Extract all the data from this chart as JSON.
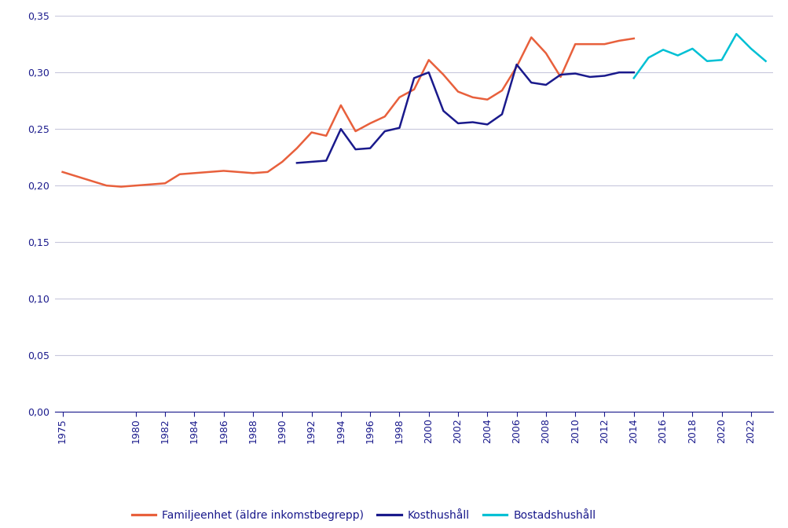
{
  "background_color": "#ffffff",
  "grid_color": "#c8c8dc",
  "series": {
    "familjeenhet": {
      "label": "Familjeenhet (äldre inkomstbegrepp)",
      "color": "#e8603c",
      "years": [
        1975,
        1976,
        1977,
        1978,
        1979,
        1980,
        1981,
        1982,
        1983,
        1984,
        1985,
        1986,
        1987,
        1988,
        1989,
        1990,
        1991,
        1992,
        1993,
        1994,
        1995,
        1996,
        1997,
        1998,
        1999,
        2000,
        2001,
        2002,
        2003,
        2004,
        2005,
        2006,
        2007,
        2008,
        2009,
        2010,
        2011,
        2012,
        2013,
        2014
      ],
      "values": [
        0.212,
        0.208,
        0.204,
        0.2,
        0.199,
        0.2,
        0.201,
        0.202,
        0.21,
        0.211,
        0.212,
        0.213,
        0.212,
        0.211,
        0.212,
        0.221,
        0.233,
        0.247,
        0.244,
        0.271,
        0.248,
        0.255,
        0.261,
        0.278,
        0.285,
        0.311,
        0.298,
        0.283,
        0.278,
        0.276,
        0.284,
        0.305,
        0.331,
        0.317,
        0.296,
        0.325,
        0.325,
        0.325,
        0.328,
        0.33
      ]
    },
    "kosthushall": {
      "label": "Kosthushåll",
      "color": "#1a1a8c",
      "years": [
        1991,
        1992,
        1993,
        1994,
        1995,
        1996,
        1997,
        1998,
        1999,
        2000,
        2001,
        2002,
        2003,
        2004,
        2005,
        2006,
        2007,
        2008,
        2009,
        2010,
        2011,
        2012,
        2013,
        2014
      ],
      "values": [
        0.22,
        0.221,
        0.222,
        0.25,
        0.232,
        0.233,
        0.248,
        0.251,
        0.295,
        0.3,
        0.266,
        0.255,
        0.256,
        0.254,
        0.263,
        0.307,
        0.291,
        0.289,
        0.298,
        0.299,
        0.296,
        0.297,
        0.3,
        0.3
      ]
    },
    "bostadshushall": {
      "label": "Bostadshushåll",
      "color": "#00c0d4",
      "years": [
        2014,
        2015,
        2016,
        2017,
        2018,
        2019,
        2020,
        2021,
        2022,
        2023
      ],
      "values": [
        0.295,
        0.313,
        0.32,
        0.315,
        0.321,
        0.31,
        0.311,
        0.334,
        0.321,
        0.31
      ]
    }
  },
  "ylim": [
    0.0,
    0.35
  ],
  "yticks": [
    0.0,
    0.05,
    0.1,
    0.15,
    0.2,
    0.25,
    0.3,
    0.35
  ],
  "xlim": [
    1974.5,
    2023.5
  ],
  "xtick_labels": [
    "1975",
    "1980",
    "1982",
    "1984",
    "1986",
    "1988",
    "1990",
    "1992",
    "1994",
    "1996",
    "1998",
    "2000",
    "2002",
    "2004",
    "2006",
    "2008",
    "2010",
    "2012",
    "2014",
    "2016",
    "2018",
    "2020",
    "2022"
  ],
  "xtick_positions": [
    1975,
    1980,
    1982,
    1984,
    1986,
    1988,
    1990,
    1992,
    1994,
    1996,
    1998,
    2000,
    2002,
    2004,
    2006,
    2008,
    2010,
    2012,
    2014,
    2016,
    2018,
    2020,
    2022
  ],
  "legend_labels": [
    "Familjeenhet (äldre inkomstbegrepp)",
    "Kosthushåll",
    "Bostadshushåll"
  ],
  "legend_colors": [
    "#e8603c",
    "#1a1a8c",
    "#00c0d4"
  ],
  "line_width": 1.8,
  "text_color": "#1a1a8c",
  "axis_color": "#1a1a8c",
  "tick_fontsize": 9,
  "legend_fontsize": 10
}
